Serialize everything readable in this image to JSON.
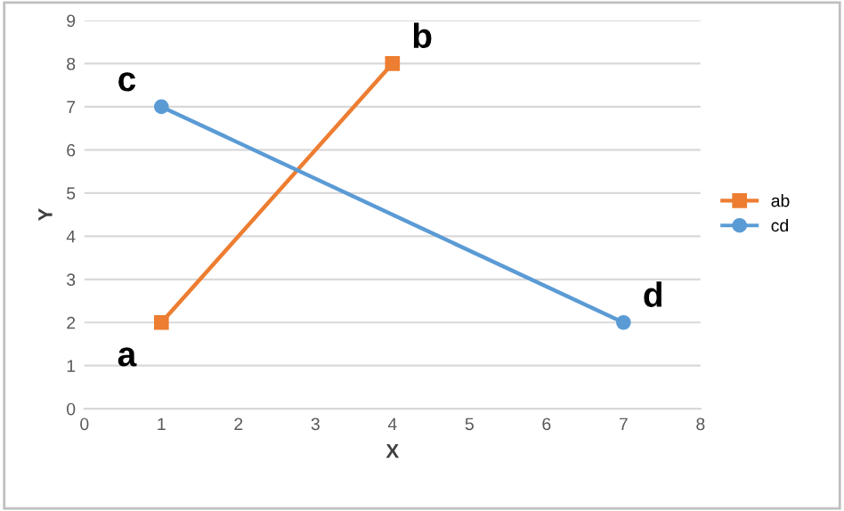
{
  "chart_data": {
    "type": "line",
    "xlabel": "X",
    "ylabel": "Y",
    "xlim": [
      0,
      8
    ],
    "ylim": [
      0,
      9
    ],
    "xticks": [
      0,
      1,
      2,
      3,
      4,
      5,
      6,
      7,
      8
    ],
    "yticks": [
      0,
      1,
      2,
      3,
      4,
      5,
      6,
      7,
      8,
      9
    ],
    "grid": "y",
    "legend": "right",
    "series": [
      {
        "name": "ab",
        "color": "#ed7d31",
        "marker": "square",
        "x": [
          1,
          4
        ],
        "values": [
          2,
          8
        ]
      },
      {
        "name": "cd",
        "color": "#5b9bd5",
        "marker": "circle",
        "x": [
          1,
          7
        ],
        "values": [
          7,
          2
        ]
      }
    ],
    "annotations": [
      {
        "text": "a",
        "x": 1,
        "y": 2
      },
      {
        "text": "b",
        "x": 4,
        "y": 8
      },
      {
        "text": "c",
        "x": 1,
        "y": 7
      },
      {
        "text": "d",
        "x": 7,
        "y": 2
      }
    ]
  }
}
